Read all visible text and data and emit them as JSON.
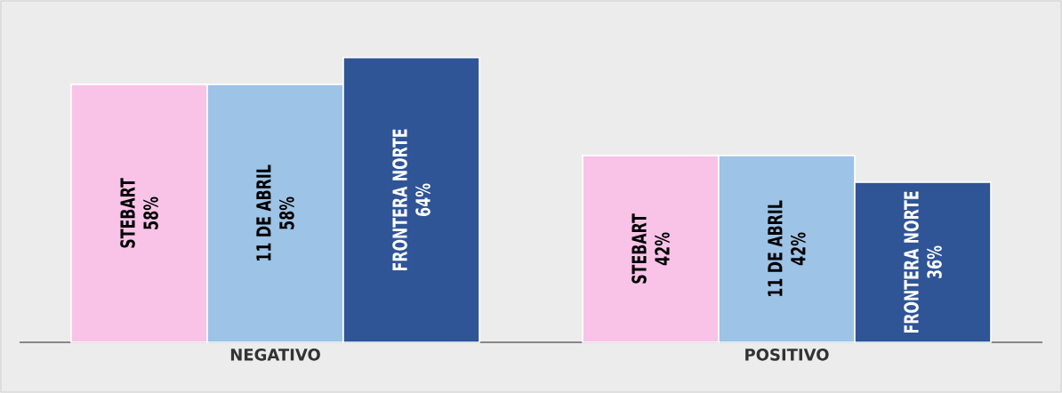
{
  "chart_data": {
    "type": "bar",
    "categories": [
      "NEGATIVO",
      "POSITIVO"
    ],
    "series": [
      {
        "name": "STEBART",
        "color": "#f9c3e8",
        "values": [
          58,
          42
        ],
        "value_labels": [
          "58%",
          "42%"
        ]
      },
      {
        "name": "11 DE ABRIL",
        "color": "#9dc3e6",
        "values": [
          58,
          42
        ],
        "value_labels": [
          "58%",
          "42%"
        ]
      },
      {
        "name": "FRONTERA NORTE",
        "color": "#2f5597",
        "values": [
          64,
          36
        ],
        "value_labels": [
          "64%",
          "36%"
        ]
      }
    ],
    "legend": false
  }
}
